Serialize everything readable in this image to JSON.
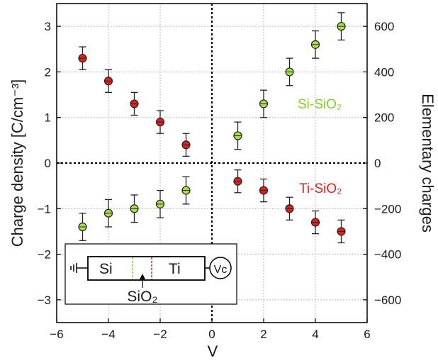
{
  "chart_data": {
    "type": "scatter",
    "xlabel": "V",
    "ylabel": "Charge density [C/cm⁻³]",
    "ylabel_right": "Elementary charges",
    "xlim": [
      -6,
      6
    ],
    "ylim": [
      -3.5,
      3.5
    ],
    "ylim_right": [
      -700,
      700
    ],
    "x_ticks": [
      -6,
      -4,
      -2,
      0,
      2,
      4,
      6
    ],
    "y_ticks": [
      -3,
      -2,
      -1,
      0,
      1,
      2,
      3
    ],
    "y_ticks_right": [
      -600,
      -400,
      -200,
      0,
      200,
      400,
      600
    ],
    "grid": true,
    "zero_lines": true,
    "series": [
      {
        "name": "Si-SiO₂",
        "label_color": "#7ed321",
        "marker_fill": "#a6e04a",
        "points": [
          {
            "x": -5,
            "y": -1.4,
            "err": 0.3
          },
          {
            "x": -4,
            "y": -1.1,
            "err": 0.3
          },
          {
            "x": -3,
            "y": -1.0,
            "err": 0.3
          },
          {
            "x": -2,
            "y": -0.9,
            "err": 0.3
          },
          {
            "x": -1,
            "y": -0.6,
            "err": 0.3
          },
          {
            "x": 1,
            "y": 0.6,
            "err": 0.3
          },
          {
            "x": 2,
            "y": 1.3,
            "err": 0.3
          },
          {
            "x": 3,
            "y": 2.0,
            "err": 0.3
          },
          {
            "x": 4,
            "y": 2.6,
            "err": 0.3
          },
          {
            "x": 5,
            "y": 3.0,
            "err": 0.3
          }
        ]
      },
      {
        "name": "Ti-SiO₂",
        "label_color": "#e0201b",
        "marker_fill": "#e0201b",
        "points": [
          {
            "x": -5,
            "y": 2.3,
            "err": 0.25
          },
          {
            "x": -4,
            "y": 1.8,
            "err": 0.25
          },
          {
            "x": -3,
            "y": 1.3,
            "err": 0.25
          },
          {
            "x": -2,
            "y": 0.9,
            "err": 0.25
          },
          {
            "x": -1,
            "y": 0.4,
            "err": 0.25
          },
          {
            "x": 1,
            "y": -0.4,
            "err": 0.25
          },
          {
            "x": 2,
            "y": -0.6,
            "err": 0.25
          },
          {
            "x": 3,
            "y": -1.0,
            "err": 0.25
          },
          {
            "x": 4,
            "y": -1.3,
            "err": 0.25
          },
          {
            "x": 5,
            "y": -1.5,
            "err": 0.25
          }
        ]
      }
    ],
    "inset": {
      "left_label": "Si",
      "right_label": "Ti",
      "bottom_label": "SiO₂",
      "source_label": "Vc",
      "green_line_color": "#7ed321",
      "red_line_color": "#e0201b"
    }
  }
}
